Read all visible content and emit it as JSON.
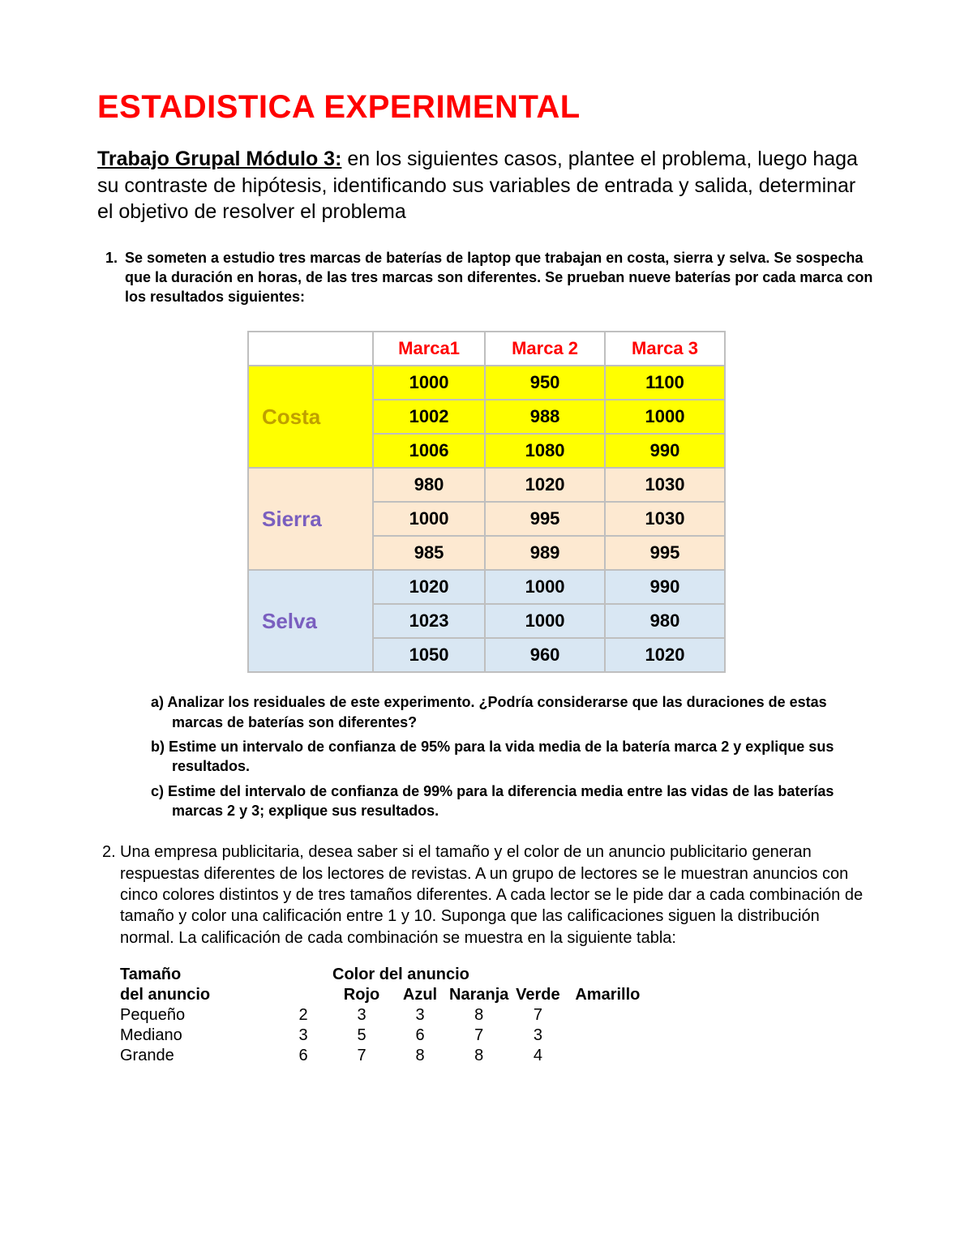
{
  "title": "ESTADISTICA EXPERIMENTAL",
  "intro": {
    "lead": "Trabajo Grupal Módulo 3:",
    "rest": " en los siguientes casos, plantee el problema, luego haga su contraste de hipótesis, identificando sus variables de entrada y salida, determinar el objetivo de resolver el problema"
  },
  "q1": {
    "num": "1.",
    "text": "Se someten a estudio tres marcas de baterías de laptop que trabajan en costa, sierra y selva. Se sospecha que la duración en horas, de las tres marcas son diferentes. Se prueban nueve baterías por cada marca con los resultados siguientes:",
    "table": {
      "headers": [
        "Marca1",
        "Marca 2",
        "Marca 3"
      ],
      "regions": [
        {
          "name": "Costa",
          "bg": "bg-yellow",
          "label_color": "region-costa",
          "rows": [
            [
              1000,
              950,
              1100
            ],
            [
              1002,
              988,
              1000
            ],
            [
              1006,
              1080,
              990
            ]
          ]
        },
        {
          "name": "Sierra",
          "bg": "bg-cream",
          "label_color": "region-sierra",
          "rows": [
            [
              980,
              1020,
              1030
            ],
            [
              1000,
              995,
              1030
            ],
            [
              985,
              989,
              995
            ]
          ]
        },
        {
          "name": "Selva",
          "bg": "bg-blue",
          "label_color": "region-selva",
          "rows": [
            [
              1020,
              1000,
              990
            ],
            [
              1023,
              1000,
              980
            ],
            [
              1050,
              960,
              1020
            ]
          ]
        }
      ]
    },
    "subitems": [
      {
        "label": "a)",
        "text": "Analizar los residuales de este experimento. ¿Podría considerarse que las duraciones de estas marcas de baterías son diferentes?"
      },
      {
        "label": "b)",
        "text": "Estime un intervalo de confianza de 95% para la vida media de la batería marca 2 y explique sus resultados."
      },
      {
        "label": "c)",
        "text": "Estime del intervalo de confianza de 99% para la diferencia media entre las vidas de las baterías marcas 2 y 3; explique sus resultados."
      }
    ]
  },
  "q2": {
    "num": "2.",
    "text": "Una empresa publicitaria, desea saber si el tamaño y el color de un anuncio publicitario generan respuestas diferentes de los lectores de revistas. A un grupo de lectores se le muestran anuncios con cinco colores distintos y de tres tamaños diferentes. A cada lector se le pide dar a cada combinación de tamaño y color una calificación entre 1 y 10. Suponga que las calificaciones siguen la distribución normal. La calificación de cada combinación se muestra en la siguiente tabla:",
    "table": {
      "row_header_top": "Tamaño",
      "row_header_bottom": "del anuncio",
      "col_group": "Color del anuncio",
      "columns": [
        "Rojo",
        "Azul",
        "Naranja",
        "Verde",
        "Amarillo"
      ],
      "rows": [
        {
          "label": "Pequeño",
          "values": [
            2,
            3,
            3,
            8,
            7
          ]
        },
        {
          "label": "Mediano",
          "values": [
            3,
            5,
            6,
            7,
            3
          ]
        },
        {
          "label": "Grande",
          "values": [
            6,
            7,
            8,
            8,
            4
          ]
        }
      ]
    }
  }
}
